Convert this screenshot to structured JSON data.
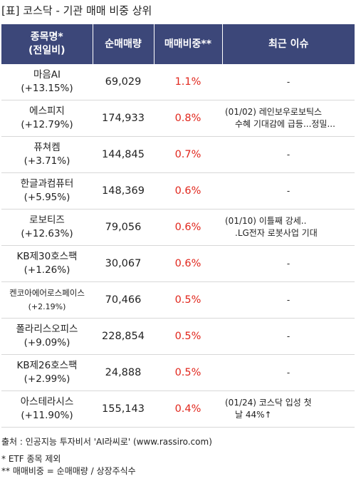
{
  "title": "[표] 코스닥 - 기관 매매 비중 상위",
  "headers": {
    "name_line1": "종목명*",
    "name_line2": "(전일비)",
    "volume": "순매매량",
    "ratio": "매매비중**",
    "issue": "최근 이슈"
  },
  "rows": [
    {
      "name": "마음AI",
      "change": "(+13.15%)",
      "volume": "69,029",
      "ratio": "1.1%",
      "issue_line1": "-",
      "issue_line2": ""
    },
    {
      "name": "에스피지",
      "change": "(+12.79%)",
      "volume": "174,933",
      "ratio": "0.8%",
      "issue_line1": "(01/02) 레인보우로보틱스",
      "issue_line2": "수혜 기대감에 급등...정밀..."
    },
    {
      "name": "퓨쳐켐",
      "change": "(+3.71%)",
      "volume": "144,845",
      "ratio": "0.7%",
      "issue_line1": "-",
      "issue_line2": ""
    },
    {
      "name": "한글과컴퓨터",
      "change": "(+5.95%)",
      "volume": "148,369",
      "ratio": "0.6%",
      "issue_line1": "-",
      "issue_line2": ""
    },
    {
      "name": "로보티즈",
      "change": "(+12.63%)",
      "volume": "79,056",
      "ratio": "0.6%",
      "issue_line1": "(01/10) 이틀째 강세..",
      "issue_line2": ".LG전자 로봇사업 기대"
    },
    {
      "name": "KB제30호스팩",
      "change": "(+1.26%)",
      "volume": "30,067",
      "ratio": "0.6%",
      "issue_line1": "-",
      "issue_line2": ""
    },
    {
      "name": "켄코아에어로스페이스",
      "change": "(+2.19%)",
      "volume": "70,466",
      "ratio": "0.5%",
      "issue_line1": "-",
      "issue_line2": ""
    },
    {
      "name": "폴라리스오피스",
      "change": "(+9.09%)",
      "volume": "228,854",
      "ratio": "0.5%",
      "issue_line1": "-",
      "issue_line2": ""
    },
    {
      "name": "KB제26호스팩",
      "change": "(+2.99%)",
      "volume": "24,888",
      "ratio": "0.5%",
      "issue_line1": "-",
      "issue_line2": ""
    },
    {
      "name": "아스테라시스",
      "change": "(+11.90%)",
      "volume": "155,143",
      "ratio": "0.4%",
      "issue_line1": "(01/24) 코스닥 입성 첫",
      "issue_line2": "날 44%↑"
    }
  ],
  "footer": {
    "source": "출처 : 인공지능 투자비서 'AI라씨로' (www.rassiro.com)",
    "note1": "* ETF 종목 제외",
    "note2": "** 매매비중 = 순매매량 / 상장주식수"
  },
  "colors": {
    "header_bg": "#3c4779",
    "ratio_text": "#e1261c"
  }
}
